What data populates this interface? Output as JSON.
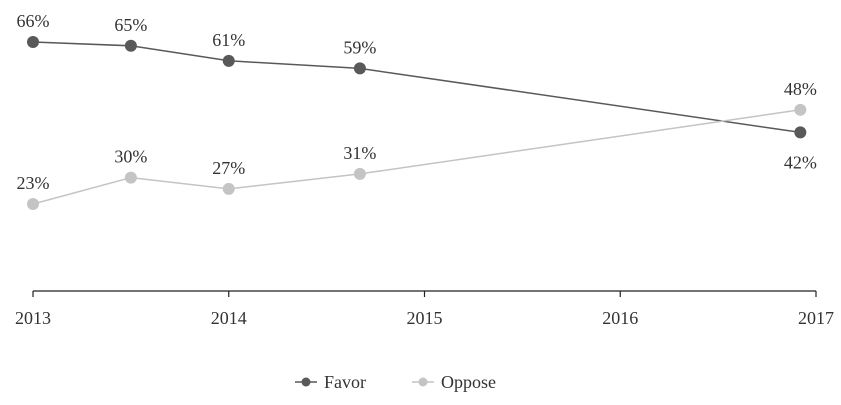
{
  "chart_data": {
    "type": "line",
    "title": "",
    "xlabel": "",
    "ylabel": "",
    "x_ticks": [
      "2013",
      "2014",
      "2015",
      "2016",
      "2017"
    ],
    "xlim": [
      2013,
      2017
    ],
    "ylim": [
      0,
      70
    ],
    "grid": false,
    "legend_position": "bottom-center",
    "series": [
      {
        "name": "Favor",
        "color": "#595959",
        "points": [
          {
            "x": 2013.0,
            "y": 66,
            "label": "66%",
            "label_pos": "above"
          },
          {
            "x": 2013.5,
            "y": 65,
            "label": "65%",
            "label_pos": "above"
          },
          {
            "x": 2014.0,
            "y": 61,
            "label": "61%",
            "label_pos": "above"
          },
          {
            "x": 2014.67,
            "y": 59,
            "label": "59%",
            "label_pos": "above"
          },
          {
            "x": 2016.92,
            "y": 42,
            "label": "42%",
            "label_pos": "below"
          }
        ]
      },
      {
        "name": "Oppose",
        "color": "#c4c4c4",
        "points": [
          {
            "x": 2013.0,
            "y": 23,
            "label": "23%",
            "label_pos": "above"
          },
          {
            "x": 2013.5,
            "y": 30,
            "label": "30%",
            "label_pos": "above"
          },
          {
            "x": 2014.0,
            "y": 27,
            "label": "27%",
            "label_pos": "above"
          },
          {
            "x": 2014.67,
            "y": 31,
            "label": "31%",
            "label_pos": "above"
          },
          {
            "x": 2016.92,
            "y": 48,
            "label": "48%",
            "label_pos": "above"
          }
        ]
      }
    ]
  }
}
